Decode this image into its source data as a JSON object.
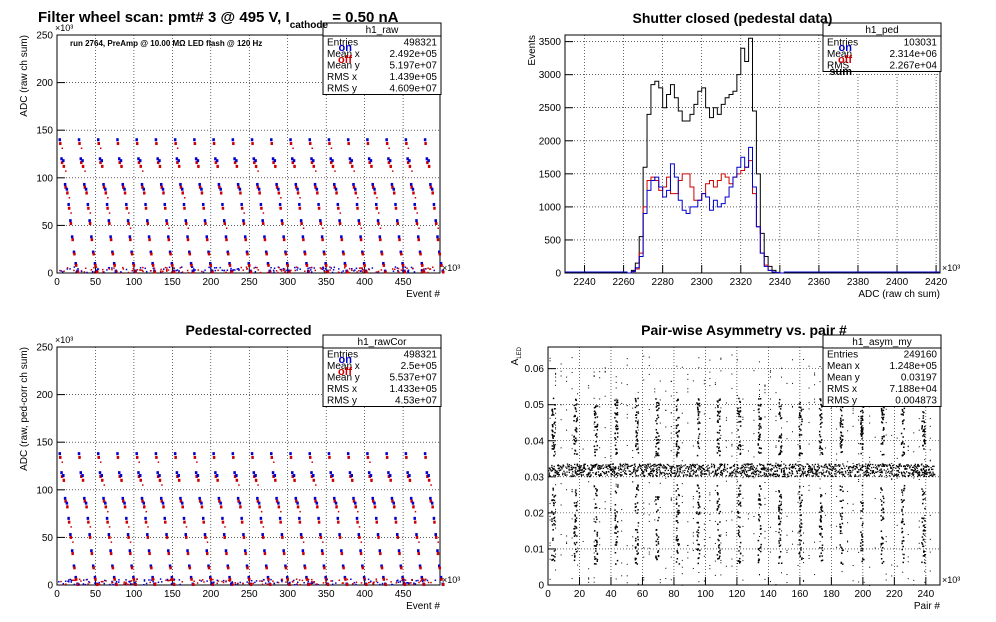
{
  "chart_data": [
    {
      "type": "scatter",
      "id": "raw",
      "title": "Filter wheel scan: pmt#   3 @   495 V, I",
      "title_sub": "cathode",
      "title_tail": "   = 0.50 nA",
      "annotation": "run 2764, PreAmp @ 10.00 MΩ LED flash @  120 Hz",
      "xlabel": "Event #",
      "ylabel": "ADC (raw ch sum)",
      "xlim": [
        0,
        498
      ],
      "ylim": [
        0,
        250
      ],
      "x_exponent": "×10³",
      "y_exponent": "×10³",
      "x_ticks": [
        "0",
        "50",
        "100",
        "150",
        "200",
        "250",
        "300",
        "350",
        "400",
        "450"
      ],
      "y_ticks": [
        "0",
        "50",
        "100",
        "150",
        "200",
        "250"
      ],
      "legend": [
        {
          "label": "on",
          "color": "#0000cc"
        },
        {
          "label": "off",
          "color": "#cc0000"
        }
      ],
      "stats": {
        "name": "h1_raw",
        "rows": [
          [
            "Entries",
            "498321"
          ],
          [
            "Mean x",
            "2.492e+05"
          ],
          [
            "Mean y",
            "5.197e+07"
          ],
          [
            "RMS x",
            "1.439e+05"
          ],
          [
            "RMS y",
            "4.609e+07"
          ]
        ]
      },
      "grid": true,
      "levels_on": [
        140,
        120,
        118,
        93,
        88,
        72,
        55,
        38,
        22,
        10,
        2
      ],
      "levels_off": [
        136,
        116,
        112,
        90,
        84,
        68,
        52,
        35,
        20,
        8,
        1
      ],
      "period": 25
    },
    {
      "type": "line",
      "id": "ped",
      "title": "Shutter closed (pedestal data)",
      "xlabel": "ADC (raw ch sum)",
      "ylabel": "Events",
      "xlim": [
        2230,
        2422
      ],
      "ylim": [
        0,
        3600
      ],
      "x_exponent": "×10³",
      "x_ticks": [
        "2240",
        "2260",
        "2280",
        "2300",
        "2320",
        "2340",
        "2360",
        "2380",
        "2400",
        "2420"
      ],
      "y_ticks": [
        "0",
        "500",
        "1000",
        "1500",
        "2000",
        "2500",
        "3000",
        "3500"
      ],
      "legend": [
        {
          "label": "on",
          "color": "#0000cc"
        },
        {
          "label": "off",
          "color": "#cc0000"
        },
        {
          "label": "sum",
          "color": "#000000"
        }
      ],
      "stats": {
        "name": "h1_ped",
        "rows": [
          [
            "Entries",
            "103031"
          ],
          [
            "Mean",
            "2.314e+06"
          ],
          [
            "RMS",
            "2.267e+04"
          ]
        ]
      },
      "grid": true,
      "bin_start": 2262,
      "bin_width": 2,
      "series": [
        {
          "name": "sum",
          "color": "#000000",
          "values": [
            0,
            40,
            150,
            550,
            1600,
            2400,
            2850,
            2900,
            2800,
            2500,
            2700,
            2850,
            2650,
            2450,
            2300,
            2300,
            2400,
            2550,
            2750,
            2800,
            2500,
            2350,
            2500,
            2400,
            2550,
            2650,
            2700,
            2750,
            3000,
            3400,
            3200,
            3550,
            2450,
            1500,
            600,
            250,
            100,
            40,
            10,
            0
          ]
        },
        {
          "name": "off",
          "color": "#cc0000",
          "values": [
            0,
            20,
            60,
            300,
            1000,
            1400,
            1450,
            1400,
            1250,
            1300,
            1450,
            1200,
            1200,
            1400,
            1500,
            1500,
            1300,
            1100,
            1100,
            1200,
            1350,
            1400,
            1300,
            1400,
            1500,
            1450,
            1350,
            1450,
            1500,
            1550,
            1600,
            1700,
            1200,
            700,
            300,
            120,
            40,
            15,
            5,
            0
          ]
        },
        {
          "name": "on",
          "color": "#0000cc",
          "values": [
            0,
            20,
            80,
            250,
            900,
            1250,
            1400,
            1450,
            1300,
            1150,
            1250,
            1650,
            1450,
            1100,
            950,
            900,
            1000,
            1000,
            1100,
            1200,
            1150,
            950,
            1100,
            1000,
            1050,
            1150,
            1300,
            1450,
            1600,
            1750,
            1600,
            1900,
            1300,
            700,
            300,
            100,
            40,
            15,
            5,
            0
          ]
        }
      ]
    },
    {
      "type": "scatter",
      "id": "rawCor",
      "title": "Pedestal-corrected",
      "xlabel": "Event #",
      "ylabel": "ADC (raw, ped-corr ch sum)",
      "xlim": [
        0,
        498
      ],
      "ylim": [
        0,
        250
      ],
      "x_exponent": "×10³",
      "y_exponent": "×10³",
      "x_ticks": [
        "0",
        "50",
        "100",
        "150",
        "200",
        "250",
        "300",
        "350",
        "400",
        "450"
      ],
      "y_ticks": [
        "0",
        "50",
        "100",
        "150",
        "200",
        "250"
      ],
      "legend": [
        {
          "label": "on",
          "color": "#0000cc"
        },
        {
          "label": "off",
          "color": "#cc0000"
        }
      ],
      "stats": {
        "name": "h1_rawCor",
        "rows": [
          [
            "Entries",
            "498321"
          ],
          [
            "Mean x",
            "2.5e+05"
          ],
          [
            "Mean y",
            "5.537e+07"
          ],
          [
            "RMS x",
            "1.433e+05"
          ],
          [
            "RMS y",
            "4.53e+07"
          ]
        ]
      },
      "grid": true,
      "levels_on": [
        138,
        118,
        115,
        91,
        86,
        70,
        53,
        36,
        20,
        8,
        1
      ],
      "levels_off": [
        134,
        114,
        110,
        88,
        82,
        66,
        50,
        33,
        18,
        6,
        0.5
      ],
      "period": 25
    },
    {
      "type": "scatter",
      "id": "asym",
      "title": "Pair-wise Asymmetry vs. pair #",
      "xlabel": "Pair #",
      "ylabel": "A",
      "ylabel_sub": "LED",
      "xlim": [
        0,
        249
      ],
      "ylim": [
        0,
        0.066
      ],
      "x_exponent": "×10³",
      "x_ticks": [
        "0",
        "20",
        "40",
        "60",
        "80",
        "100",
        "120",
        "140",
        "160",
        "180",
        "200",
        "220",
        "240"
      ],
      "y_ticks": [
        "0",
        "0.01",
        "0.02",
        "0.03",
        "0.04",
        "0.05",
        "0.06"
      ],
      "stats": {
        "name": "h1_asym_my",
        "rows": [
          [
            "Entries",
            "249160"
          ],
          [
            "Mean x",
            "1.248e+05"
          ],
          [
            "Mean y",
            "0.03197"
          ],
          [
            "RMS x",
            "7.188e+04"
          ],
          [
            "RMS y",
            "0.004873"
          ]
        ]
      },
      "grid": true,
      "band_center": 0.032,
      "spike_positions": [
        3,
        17,
        30,
        43,
        56,
        69,
        82,
        95,
        108,
        121,
        134,
        147,
        160,
        173,
        186,
        199,
        212,
        225,
        238
      ]
    }
  ]
}
